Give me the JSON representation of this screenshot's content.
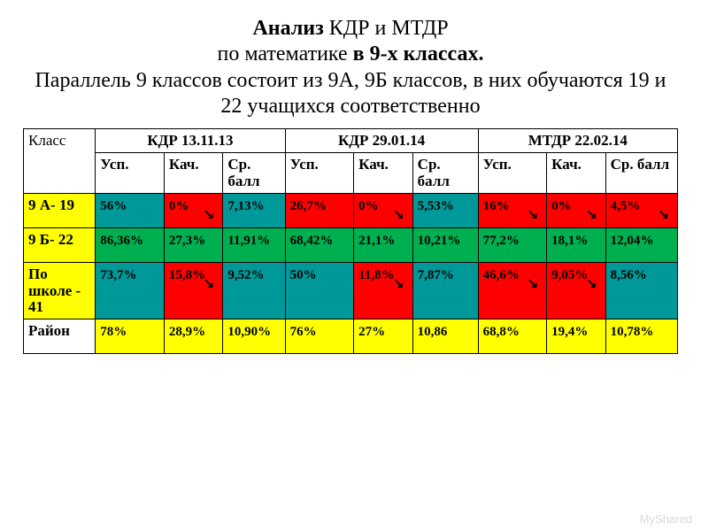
{
  "title_parts": {
    "p1": "Анализ",
    "p2": " КДР и МТДР",
    "p3": "по математике ",
    "p4": "в 9-х классах.",
    "p5": "Параллель 9 классов состоит из 9А, 9Б  классов, в них обучаются 19 и 22  учащихся соответственно"
  },
  "colors": {
    "white": "#ffffff",
    "yellow": "#ffff00",
    "red": "#ff0000",
    "teal": "#009999",
    "green": "#00b050"
  },
  "headers": {
    "class_label": "Класс",
    "groups": [
      "КДР  13.11.13",
      "КДР 29.01.14",
      "МТДР 22.02.14"
    ],
    "subs": [
      "Усп.",
      "Кач.",
      "Ср. балл"
    ]
  },
  "rows": [
    {
      "label": "9 А-  19",
      "label_bg": "yellow",
      "cells": [
        {
          "v": "56%",
          "bg": "teal",
          "arrow": false
        },
        {
          "v": "0%",
          "bg": "red",
          "arrow": true
        },
        {
          "v": "7,13%",
          "bg": "teal",
          "arrow": false
        },
        {
          "v": "26,7%",
          "bg": "red",
          "arrow": false
        },
        {
          "v": "0%",
          "bg": "red",
          "arrow": true
        },
        {
          "v": "5,53%",
          "bg": "teal",
          "arrow": false
        },
        {
          "v": "16%",
          "bg": "red",
          "arrow": true
        },
        {
          "v": "0%",
          "bg": "red",
          "arrow": true
        },
        {
          "v": "4,5%",
          "bg": "red",
          "arrow": true
        }
      ]
    },
    {
      "label": "9 Б-  22",
      "label_bg": "yellow",
      "cells": [
        {
          "v": "86,36%",
          "bg": "green",
          "arrow": false
        },
        {
          "v": "27,3%",
          "bg": "green",
          "arrow": false
        },
        {
          "v": "11,91%",
          "bg": "green",
          "arrow": false
        },
        {
          "v": "68,42%",
          "bg": "green",
          "arrow": false
        },
        {
          "v": "21,1%",
          "bg": "green",
          "arrow": false
        },
        {
          "v": "10,21%",
          "bg": "green",
          "arrow": false
        },
        {
          "v": "77,2%",
          "bg": "green",
          "arrow": false
        },
        {
          "v": "18,1%",
          "bg": "green",
          "arrow": false
        },
        {
          "v": "12,04%",
          "bg": "green",
          "arrow": false
        }
      ]
    },
    {
      "label": "По школе - 41",
      "label_bg": "yellow",
      "cells": [
        {
          "v": "73,7%",
          "bg": "teal",
          "arrow": false
        },
        {
          "v": "15,8%",
          "bg": "red",
          "arrow": true
        },
        {
          "v": "9,52%",
          "bg": "teal",
          "arrow": false
        },
        {
          "v": "50%",
          "bg": "teal",
          "arrow": false
        },
        {
          "v": "11,8%",
          "bg": "red",
          "arrow": true
        },
        {
          "v": "7,87%",
          "bg": "teal",
          "arrow": false
        },
        {
          "v": "46,6%",
          "bg": "red",
          "arrow": true
        },
        {
          "v": "9,05%",
          "bg": "red",
          "arrow": true
        },
        {
          "v": "8,56%",
          "bg": "teal",
          "arrow": false
        }
      ]
    },
    {
      "label": "Район",
      "label_bg": "white",
      "cells": [
        {
          "v": "78%",
          "bg": "yellow",
          "arrow": false
        },
        {
          "v": "28,9%",
          "bg": "yellow",
          "arrow": false
        },
        {
          "v": "10,90%",
          "bg": "yellow",
          "arrow": false
        },
        {
          "v": "76%",
          "bg": "yellow",
          "arrow": false
        },
        {
          "v": "27%",
          "bg": "yellow",
          "arrow": false
        },
        {
          "v": "10,86",
          "bg": "yellow",
          "arrow": false
        },
        {
          "v": "68,8%",
          "bg": "yellow",
          "arrow": false
        },
        {
          "v": "19,4%",
          "bg": "yellow",
          "arrow": false
        },
        {
          "v": "10,78%",
          "bg": "yellow",
          "arrow": false
        }
      ]
    }
  ],
  "arrow_glyph": "↘",
  "watermark": "MyShared",
  "layout": {
    "col_widths_pct": [
      11,
      10.5,
      9,
      9.5,
      10.5,
      9,
      10,
      10.5,
      9,
      11
    ]
  }
}
